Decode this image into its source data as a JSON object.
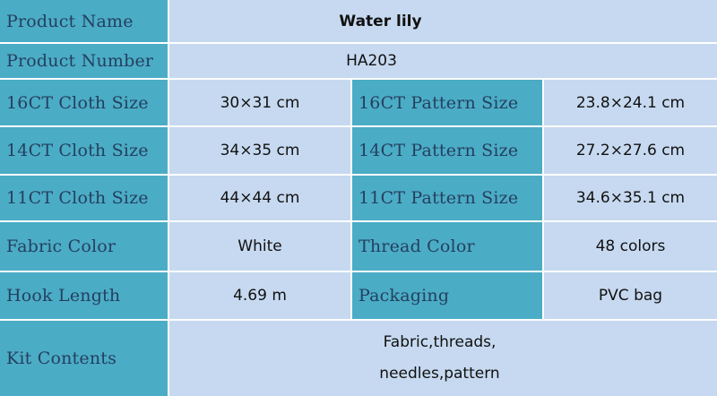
{
  "rows": {
    "product_name": {
      "label": "Product Name",
      "value": "Water lily"
    },
    "product_number": {
      "label": "Product Number",
      "value": "HA203"
    },
    "ct16": {
      "label": "16CT Cloth Size",
      "value": "30×31 cm",
      "label2": "16CT Pattern Size",
      "value2": "23.8×24.1 cm"
    },
    "ct14": {
      "label": "14CT Cloth Size",
      "value": "34×35 cm",
      "label2": "14CT Pattern Size",
      "value2": "27.2×27.6 cm"
    },
    "ct11": {
      "label": "11CT Cloth Size",
      "value": "44×44 cm",
      "label2": "11CT Pattern Size",
      "value2": "34.6×35.1 cm"
    },
    "color": {
      "label": "Fabric Color",
      "value": "White",
      "label2": "Thread Color",
      "value2": "48 colors"
    },
    "hook": {
      "label": "Hook Length",
      "value": "4.69 m",
      "label2": "Packaging",
      "value2": "PVC bag"
    },
    "kit": {
      "label": "Kit Contents",
      "line1": "Fabric,threads,",
      "line2": "needles,pattern"
    }
  },
  "colors": {
    "label_bg": "#4bacc6",
    "value_bg": "#c6d9f0"
  }
}
